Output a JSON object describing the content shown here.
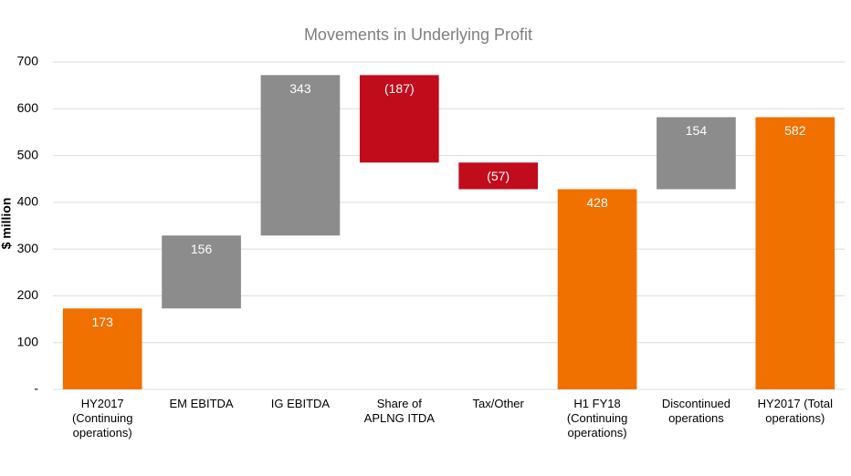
{
  "chart_data": {
    "type": "waterfall",
    "title": "Movements in Underlying Profit",
    "y_label": "$ million",
    "categories": [
      "HY2017\n(Continuing\noperations)",
      "EM EBITDA",
      "IG EBITDA",
      "Share of\nAPLNG ITDA",
      "Tax/Other",
      "H1 FY18\n(Continuing\noperations)",
      "Discontinued\noperations",
      "HY2017 (Total\noperations)"
    ],
    "values": [
      173,
      156,
      343,
      -187,
      -57,
      428,
      154,
      582
    ],
    "value_labels": [
      "173",
      "156",
      "343",
      "(187)",
      "(57)",
      "428",
      "154",
      "582"
    ],
    "totals": [
      true,
      false,
      false,
      false,
      false,
      true,
      false,
      true
    ],
    "colors": [
      "#f07000",
      "#8c8c8c",
      "#8c8c8c",
      "#c00c1b",
      "#c00c1b",
      "#f07000",
      "#8c8c8c",
      "#f07000"
    ],
    "ylim": [
      0,
      700
    ],
    "yticks": [
      {
        "value": 0,
        "label": "-"
      },
      100,
      200,
      300,
      400,
      500,
      600,
      700
    ],
    "grid": true
  }
}
